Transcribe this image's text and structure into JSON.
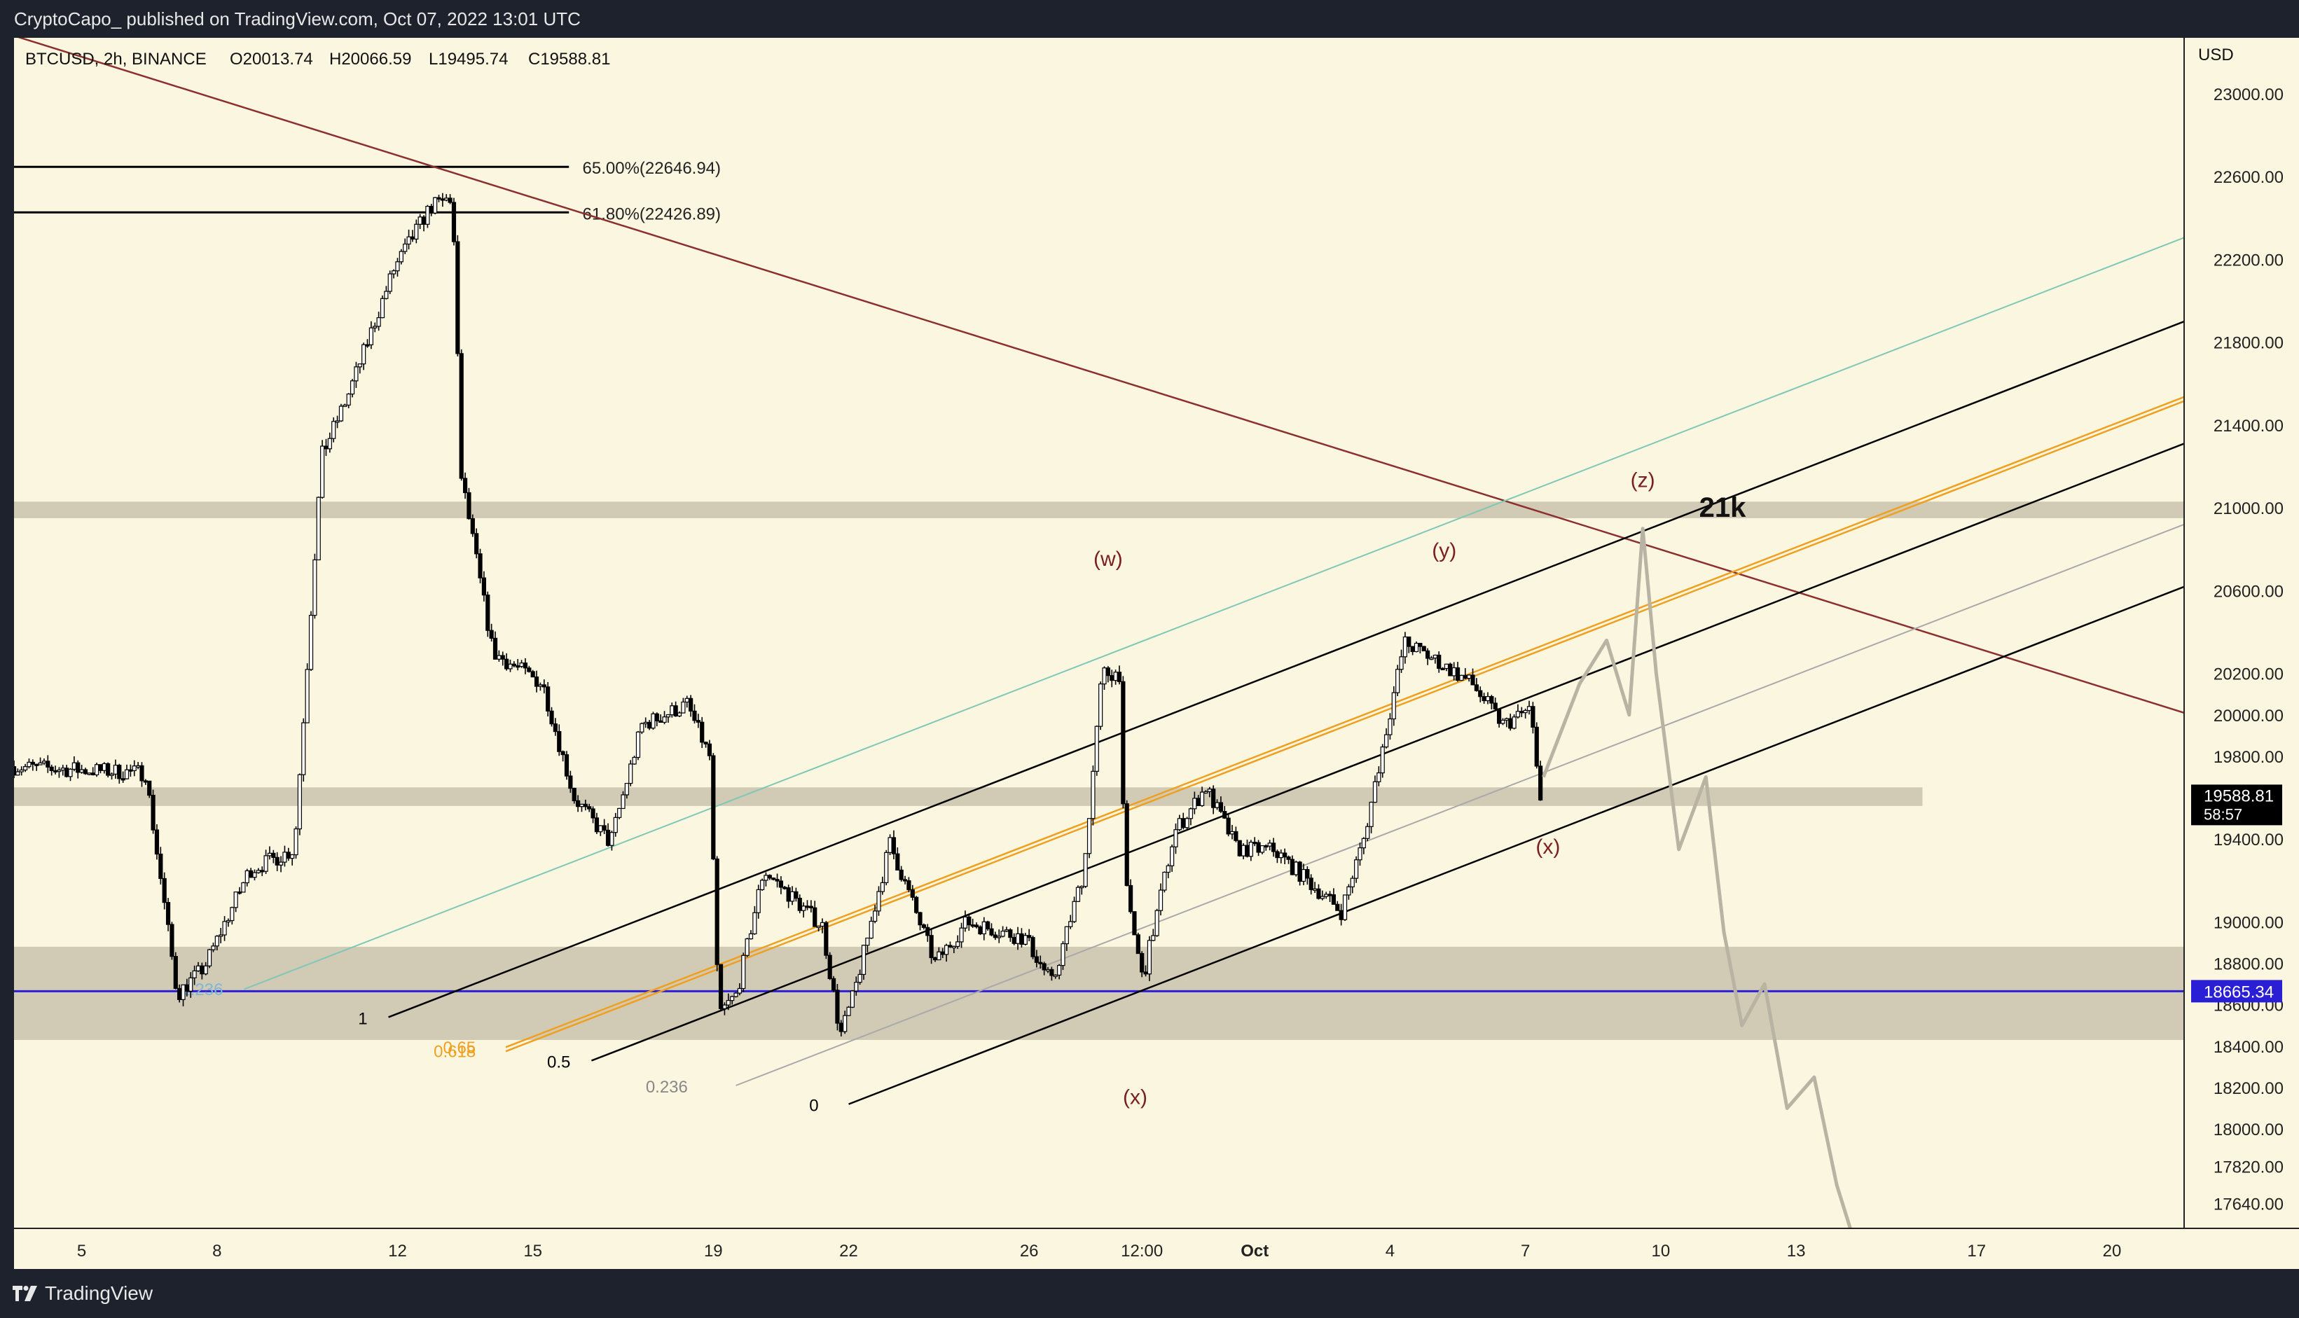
{
  "header": {
    "published_by": "CryptoCapo_ published on TradingView.com, Oct 07, 2022 13:01 UTC"
  },
  "footer": {
    "brand": "TradingView"
  },
  "colors": {
    "background": "#fbf6df",
    "candle_up": "#ffffff",
    "candle_down": "#000000",
    "zone_fill": "#c9c2ad",
    "support_line": "#2b1fd6",
    "trend_line": "#8b2f2f",
    "fib_orange": "#f0a020",
    "wave_label": "#7a1f1f",
    "projection": "#b8b3a3"
  },
  "chart_data": {
    "type": "candlestick",
    "symbol_info": "BTCUSD, 2h, BINANCE",
    "ohlc": {
      "open": "O20013.74",
      "high": "H20066.59",
      "low": "L19495.74",
      "close": "C19588.81"
    },
    "price_axis_label": "USD",
    "y_ticks": [
      23000,
      22600,
      22200,
      21800,
      21400,
      21000,
      20600,
      20200,
      20000,
      19800,
      19400,
      19000,
      18800,
      18600,
      18400,
      18200,
      18000,
      17820,
      17640
    ],
    "y_tick_labels": [
      "23000.00",
      "22600.00",
      "22200.00",
      "21800.00",
      "21400.00",
      "21000.00",
      "20600.00",
      "20200.00",
      "20000.00",
      "19800.00",
      "19400.00",
      "19000.00",
      "18800.00",
      "18600.00",
      "18400.00",
      "18200.00",
      "18000.00",
      "17820.00",
      "17640.00"
    ],
    "x_ticks": [
      {
        "label": "5",
        "day": 5
      },
      {
        "label": "8",
        "day": 8
      },
      {
        "label": "12",
        "day": 12
      },
      {
        "label": "15",
        "day": 15
      },
      {
        "label": "19",
        "day": 19
      },
      {
        "label": "22",
        "day": 22
      },
      {
        "label": "26",
        "day": 26
      },
      {
        "label": "12:00",
        "day": 28.5
      },
      {
        "label": "Oct",
        "day": 31,
        "bold": true
      },
      {
        "label": "4",
        "day": 34
      },
      {
        "label": "7",
        "day": 37
      },
      {
        "label": "10",
        "day": 40
      },
      {
        "label": "13",
        "day": 43
      },
      {
        "label": "17",
        "day": 47
      },
      {
        "label": "20",
        "day": 50
      }
    ],
    "current_price": {
      "label": "19588.81",
      "countdown": "58:57",
      "value": 19588.81
    },
    "support_price": {
      "label": "18665.34",
      "value": 18665.34
    },
    "fib_levels": [
      {
        "label": "65.00%(22646.94)",
        "value": 22646.94
      },
      {
        "label": "61.80%(22426.89)",
        "value": 22426.89
      }
    ],
    "zones": [
      {
        "from": 21030,
        "to": 20950
      },
      {
        "from": 19650,
        "to": 19560
      },
      {
        "from": 18880,
        "to": 18430
      }
    ],
    "big_label": "21k",
    "wave_labels": [
      {
        "text": "(w)",
        "day": 27.75,
        "price": 20720
      },
      {
        "text": "(x)",
        "day": 28.35,
        "price": 18120
      },
      {
        "text": "(y)",
        "day": 35.2,
        "price": 20760
      },
      {
        "text": "(z)",
        "day": 39.6,
        "price": 21100
      },
      {
        "text": "(x)",
        "day": 37.5,
        "price": 19330
      }
    ],
    "channel_labels": [
      {
        "text": "1",
        "day": 11.8,
        "price": 18540,
        "color": "#000000"
      },
      {
        "text": "0.5",
        "day": 16.3,
        "price": 18330,
        "color": "#000000"
      },
      {
        "text": "0.65",
        "day": 14.2,
        "price": 18400,
        "color": "#f0a020"
      },
      {
        "text": "0.618",
        "day": 14.2,
        "price": 18380,
        "color": "#f0a020"
      },
      {
        "text": "0.236",
        "day": 18.9,
        "price": 18210,
        "color": "#888888"
      },
      {
        "text": "0",
        "day": 21.8,
        "price": 18120,
        "color": "#000000"
      },
      {
        "text": "1.236",
        "day": 8.6,
        "price": 18680,
        "color": "#7fb7d8"
      }
    ],
    "ylim": [
      17520,
      23270
    ],
    "xlim": [
      3.5,
      51.6
    ]
  }
}
